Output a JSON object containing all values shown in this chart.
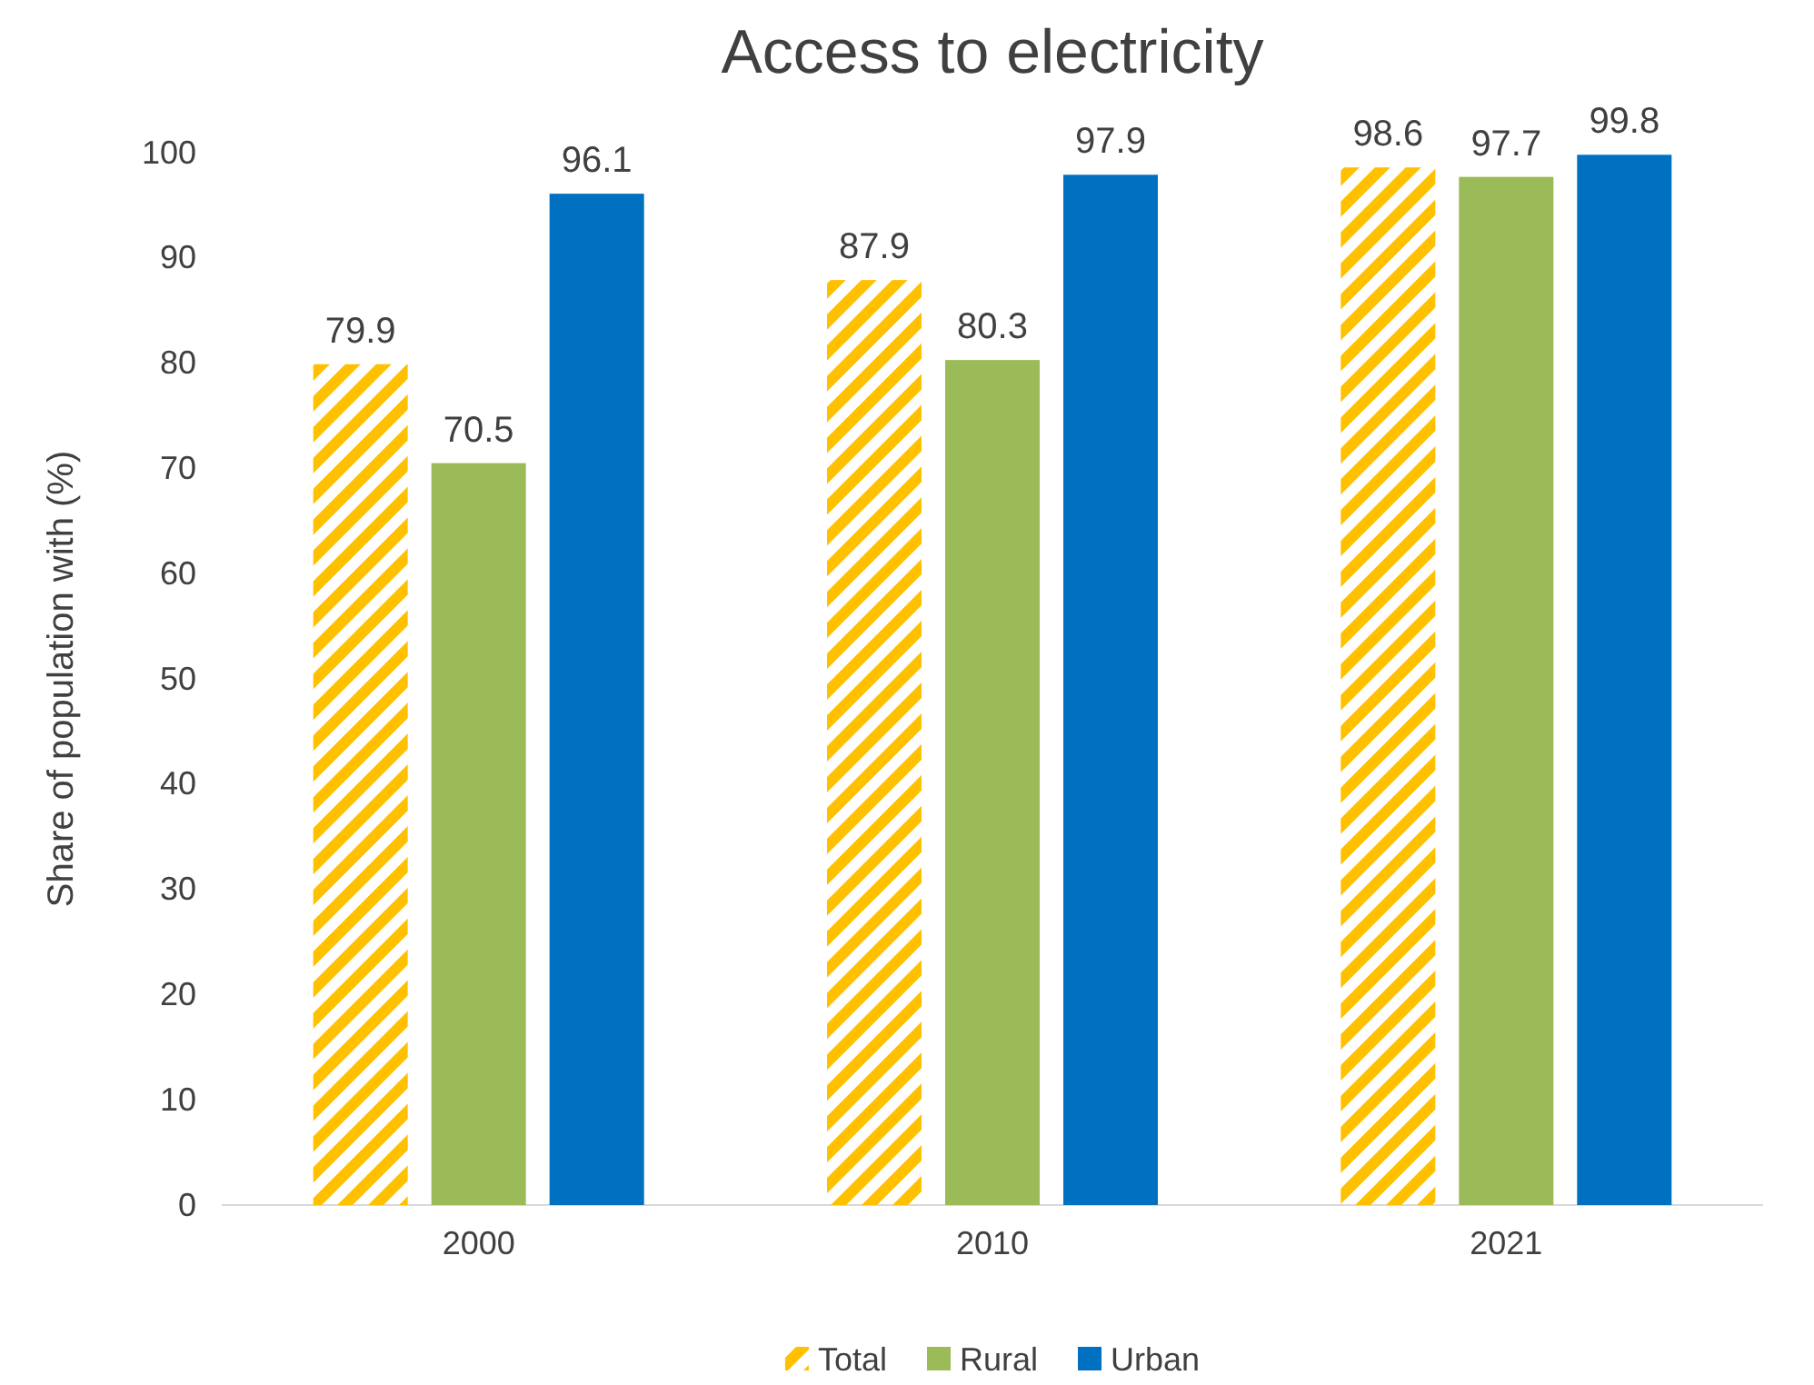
{
  "chart_data": {
    "type": "bar",
    "title": "Access to electricity",
    "ylabel": "Share of population with  (%)",
    "categories": [
      "2000",
      "2010",
      "2021"
    ],
    "series": [
      {
        "name": "Total",
        "color": "#ffc000",
        "values": [
          79.9,
          87.9,
          98.6
        ]
      },
      {
        "name": "Rural",
        "color": "#9bbb59",
        "values": [
          70.5,
          80.3,
          97.7
        ]
      },
      {
        "name": "Urban",
        "color": "#0070c0",
        "values": [
          96.1,
          97.9,
          99.8
        ]
      }
    ],
    "ylim": [
      0,
      100
    ],
    "yticks": [
      0,
      10,
      20,
      30,
      40,
      50,
      60,
      70,
      80,
      90,
      100
    ],
    "grid": false,
    "legend": "bottom",
    "data_labels": true
  }
}
